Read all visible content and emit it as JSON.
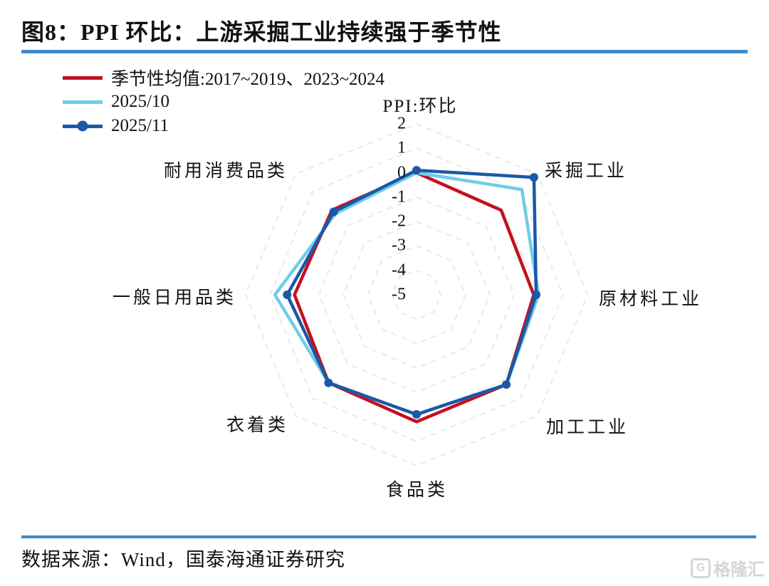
{
  "header": {
    "title": "图8：PPI 环比：上游采掘工业持续强于季节性"
  },
  "style": {
    "rule_color": "#3f88cc",
    "grid_color": "#e9e9e9"
  },
  "chart_data": {
    "type": "radar",
    "title": "PPI:环比",
    "categories": [
      "PPI:环比",
      "采掘工业",
      "原材料工业",
      "加工工业",
      "食品类",
      "衣着类",
      "一般日用品类",
      "耐用消费品类"
    ],
    "axis": {
      "min": -5,
      "max": 2,
      "step": 1,
      "ticks": [
        "2",
        "1",
        "0",
        "-1",
        "-2",
        "-3",
        "-4",
        "-5"
      ],
      "grid": "dashed-octagon-rings"
    },
    "series": [
      {
        "name": "季节性均值:2017~2019、2023~2024",
        "color": "#c40f1f",
        "marker": false,
        "values": [
          0.0,
          -0.1,
          -0.2,
          0.2,
          0.2,
          0.1,
          0.0,
          -0.1
        ]
      },
      {
        "name": "2025/10",
        "color": "#70cde8",
        "marker": false,
        "values": [
          0.0,
          1.1,
          0.0,
          0.2,
          -0.1,
          0.1,
          0.8,
          -0.3
        ]
      },
      {
        "name": "2025/11",
        "color": "#1b59a6",
        "marker": true,
        "values": [
          0.1,
          1.8,
          -0.1,
          0.2,
          -0.1,
          0.1,
          0.3,
          -0.2
        ]
      }
    ],
    "legend_position": "top-left"
  },
  "footer": {
    "source": "数据来源：Wind，国泰海通证券研究",
    "watermark_icon": "G",
    "watermark": "格隆汇"
  }
}
